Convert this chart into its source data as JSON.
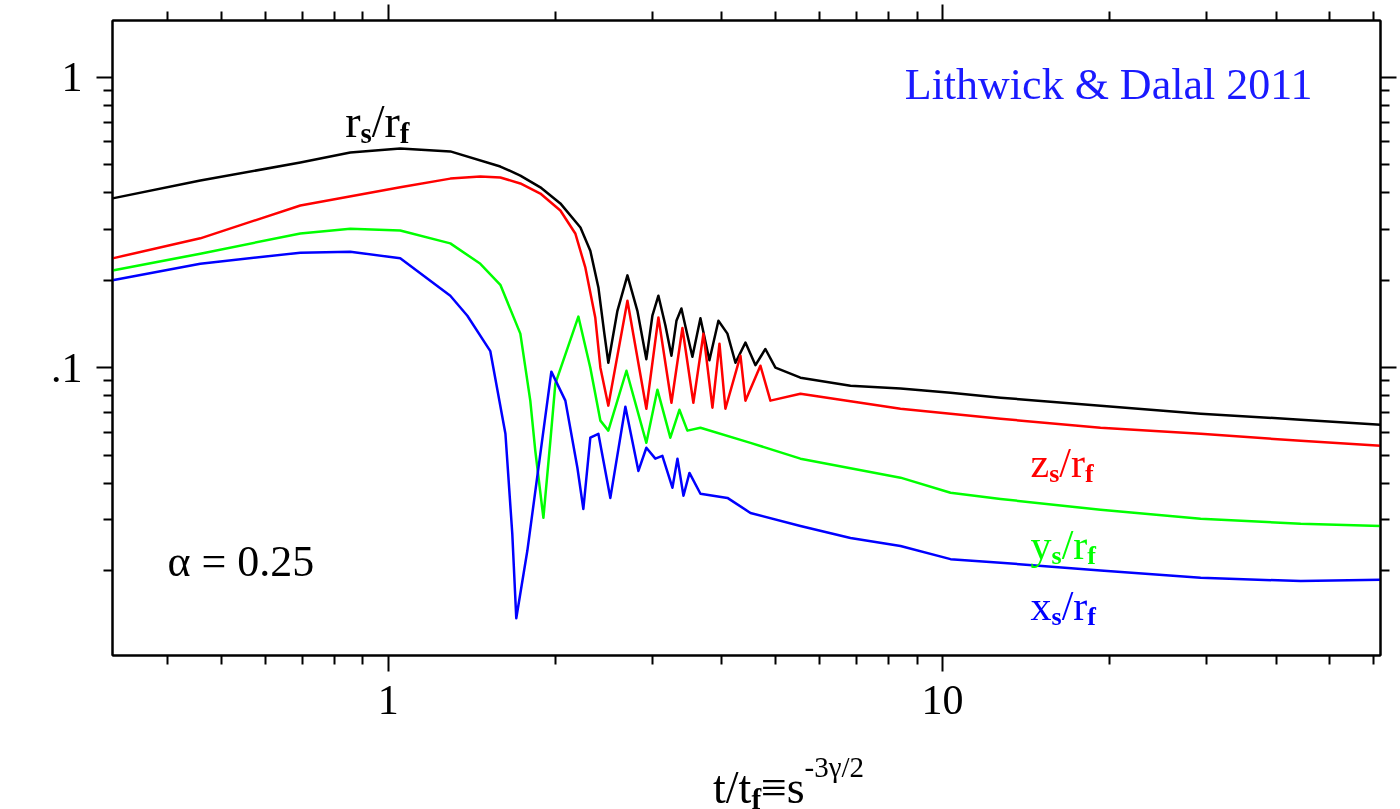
{
  "chart_data": {
    "type": "line",
    "log": "xy",
    "xlabel": "t/t$_{f}$≡s$^{-3γ/2}$",
    "xlim": [
      0.318,
      61.7
    ],
    "ylim": [
      0.0102,
      1.57
    ],
    "xticks": [
      {
        "value": 0.4,
        "label": null
      },
      {
        "value": 0.5,
        "label": null
      },
      {
        "value": 0.6,
        "label": null
      },
      {
        "value": 0.7,
        "label": null
      },
      {
        "value": 0.8,
        "label": null
      },
      {
        "value": 0.9,
        "label": null
      },
      1,
      {
        "value": 2,
        "label": null
      },
      {
        "value": 3,
        "label": null
      },
      {
        "value": 4,
        "label": null
      },
      {
        "value": 5,
        "label": null
      },
      {
        "value": 6,
        "label": null
      },
      {
        "value": 7,
        "label": null
      },
      {
        "value": 8,
        "label": null
      },
      {
        "value": 9,
        "label": null
      },
      10,
      {
        "value": 20,
        "label": null
      },
      {
        "value": 30,
        "label": null
      },
      {
        "value": 40,
        "label": null
      },
      {
        "value": 50,
        "label": null
      },
      {
        "value": 60,
        "label": null
      }
    ],
    "yticks": [
      {
        "value": 0.02,
        "label": null
      },
      {
        "value": 0.03,
        "label": null
      },
      {
        "value": 0.04,
        "label": null
      },
      {
        "value": 0.05,
        "label": null
      },
      {
        "value": 0.06,
        "label": null
      },
      {
        "value": 0.07,
        "label": null
      },
      {
        "value": 0.08,
        "label": null
      },
      {
        "value": 0.09,
        "label": null
      },
      {
        "value": 0.1,
        "label": ".1"
      },
      {
        "value": 0.2,
        "label": null
      },
      {
        "value": 0.3,
        "label": null
      },
      {
        "value": 0.4,
        "label": null
      },
      {
        "value": 0.5,
        "label": null
      },
      {
        "value": 0.6,
        "label": null
      },
      {
        "value": 0.7,
        "label": null
      },
      {
        "value": 0.8,
        "label": null
      },
      {
        "value": 0.9,
        "label": null
      },
      1
    ],
    "grid": false,
    "annotations": [
      "Lithwick & Dalal 2011",
      "α = 0.25"
    ],
    "series": [
      {
        "name": "r$_{s}$/r$_{f}$",
        "color": "#000000",
        "x": [
          0.318,
          0.458,
          0.694,
          0.854,
          1.051,
          1.294,
          1.593,
          1.731,
          1.881,
          2.044,
          2.222,
          2.315,
          2.394,
          2.454,
          2.495,
          2.591,
          2.701,
          2.815,
          2.922,
          2.996,
          3.072,
          3.162,
          3.243,
          3.311,
          3.38,
          3.451,
          3.538,
          3.658,
          3.797,
          3.942,
          4.092,
          4.231,
          4.41,
          4.598,
          4.791,
          4.995,
          5.542,
          6.823,
          8.399,
          10.34,
          12.73,
          19.28,
          29.23,
          44.29,
          61.7
        ],
        "values": [
          0.383,
          0.441,
          0.509,
          0.551,
          0.569,
          0.556,
          0.493,
          0.459,
          0.418,
          0.368,
          0.304,
          0.253,
          0.189,
          0.131,
          0.104,
          0.157,
          0.208,
          0.157,
          0.107,
          0.151,
          0.177,
          0.14,
          0.11,
          0.145,
          0.16,
          0.134,
          0.109,
          0.148,
          0.106,
          0.145,
          0.131,
          0.104,
          0.122,
          0.102,
          0.116,
          0.1,
          0.0924,
          0.0867,
          0.0847,
          0.082,
          0.0788,
          0.074,
          0.0694,
          0.0662,
          0.0636
        ]
      },
      {
        "name": "z$_{s}$/r$_{f}$",
        "color": "#ff0000",
        "x": [
          0.318,
          0.458,
          0.694,
          1.051,
          1.294,
          1.466,
          1.593,
          1.731,
          1.881,
          2.044,
          2.175,
          2.268,
          2.363,
          2.414,
          2.495,
          2.701,
          2.922,
          3.072,
          3.243,
          3.394,
          3.552,
          3.704,
          3.845,
          3.959,
          4.058,
          4.32,
          4.41,
          4.693,
          4.892,
          5.542,
          8.399,
          10.34,
          12.73,
          19.28,
          29.23,
          44.29,
          61.7
        ],
        "values": [
          0.238,
          0.279,
          0.362,
          0.418,
          0.448,
          0.456,
          0.452,
          0.431,
          0.398,
          0.348,
          0.29,
          0.221,
          0.149,
          0.1,
          0.074,
          0.17,
          0.0722,
          0.149,
          0.0757,
          0.137,
          0.0757,
          0.131,
          0.0728,
          0.121,
          0.0722,
          0.11,
          0.077,
          0.1016,
          0.077,
          0.0813,
          0.0722,
          0.0694,
          0.0667,
          0.0621,
          0.0592,
          0.056,
          0.0538
        ]
      },
      {
        "name": "y$_{s}$/r$_{f}$",
        "color": "#00ff00",
        "x": [
          0.318,
          0.458,
          0.694,
          0.854,
          1.051,
          1.294,
          1.466,
          1.593,
          1.731,
          1.804,
          1.842,
          1.905,
          1.961,
          2.002,
          2.203,
          2.315,
          2.414,
          2.495,
          2.69,
          2.922,
          3.059,
          3.228,
          3.352,
          3.465,
          3.658,
          4.503,
          5.542,
          8.399,
          10.34,
          12.73,
          19.28,
          29.23,
          44.29,
          61.7
        ],
        "values": [
          0.216,
          0.247,
          0.29,
          0.301,
          0.297,
          0.268,
          0.228,
          0.193,
          0.131,
          0.077,
          0.0517,
          0.0304,
          0.056,
          0.0881,
          0.15,
          0.1,
          0.0657,
          0.0607,
          0.0976,
          0.0551,
          0.084,
          0.0574,
          0.0716,
          0.0607,
          0.0621,
          0.0551,
          0.0486,
          0.0418,
          0.0371,
          0.0353,
          0.0324,
          0.0302,
          0.029,
          0.0285
        ]
      },
      {
        "name": "x$_{s}$/r$_{f}$",
        "color": "#0000ff",
        "x": [
          0.318,
          0.458,
          0.694,
          0.854,
          1.051,
          1.294,
          1.389,
          1.528,
          1.627,
          1.674,
          1.702,
          1.782,
          1.969,
          2.087,
          2.194,
          2.249,
          2.315,
          2.394,
          2.516,
          2.678,
          2.827,
          2.922,
          3.033,
          3.123,
          3.256,
          3.325,
          3.409,
          3.495,
          3.658,
          4.092,
          4.503,
          5.542,
          6.823,
          8.399,
          10.34,
          12.73,
          19.28,
          29.23,
          44.29,
          61.7
        ],
        "values": [
          0.2,
          0.228,
          0.249,
          0.251,
          0.238,
          0.177,
          0.151,
          0.114,
          0.0592,
          0.0268,
          0.0137,
          0.0234,
          0.0969,
          0.077,
          0.0452,
          0.0326,
          0.0574,
          0.0592,
          0.0356,
          0.0734,
          0.0441,
          0.053,
          0.0486,
          0.0497,
          0.0386,
          0.0486,
          0.0362,
          0.0434,
          0.0368,
          0.0356,
          0.0316,
          0.0285,
          0.0259,
          0.0243,
          0.0219,
          0.0213,
          0.02,
          0.0189,
          0.0184,
          0.0186
        ]
      }
    ]
  }
}
